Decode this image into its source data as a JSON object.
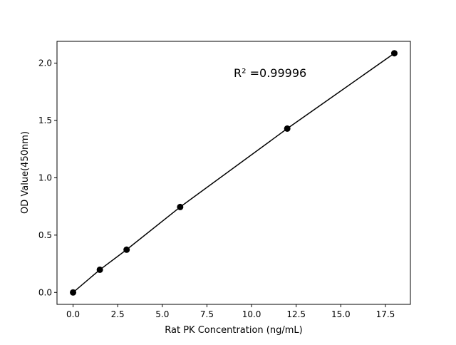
{
  "chart_data": {
    "type": "line",
    "title": "",
    "xlabel": "Rat PK Concentration (ng/mL)",
    "ylabel": "OD Value(450nm)",
    "x": [
      0,
      1.5,
      3,
      6,
      12,
      18
    ],
    "y": [
      0.0,
      0.198,
      0.373,
      0.745,
      1.429,
      2.086
    ],
    "xlim": [
      -0.9,
      18.9
    ],
    "ylim": [
      -0.104,
      2.19
    ],
    "xticks": [
      0.0,
      2.5,
      5.0,
      7.5,
      10.0,
      12.5,
      15.0,
      17.5
    ],
    "xtick_labels": [
      "0.0",
      "2.5",
      "5.0",
      "7.5",
      "10.0",
      "12.5",
      "15.0",
      "17.5"
    ],
    "yticks": [
      0.0,
      0.5,
      1.0,
      1.5,
      2.0
    ],
    "ytick_labels": [
      "0.0",
      "0.5",
      "1.0",
      "1.5",
      "2.0"
    ],
    "annotation": "R² =0.99996",
    "grid": false,
    "marker": "circle",
    "color": "#000000"
  }
}
